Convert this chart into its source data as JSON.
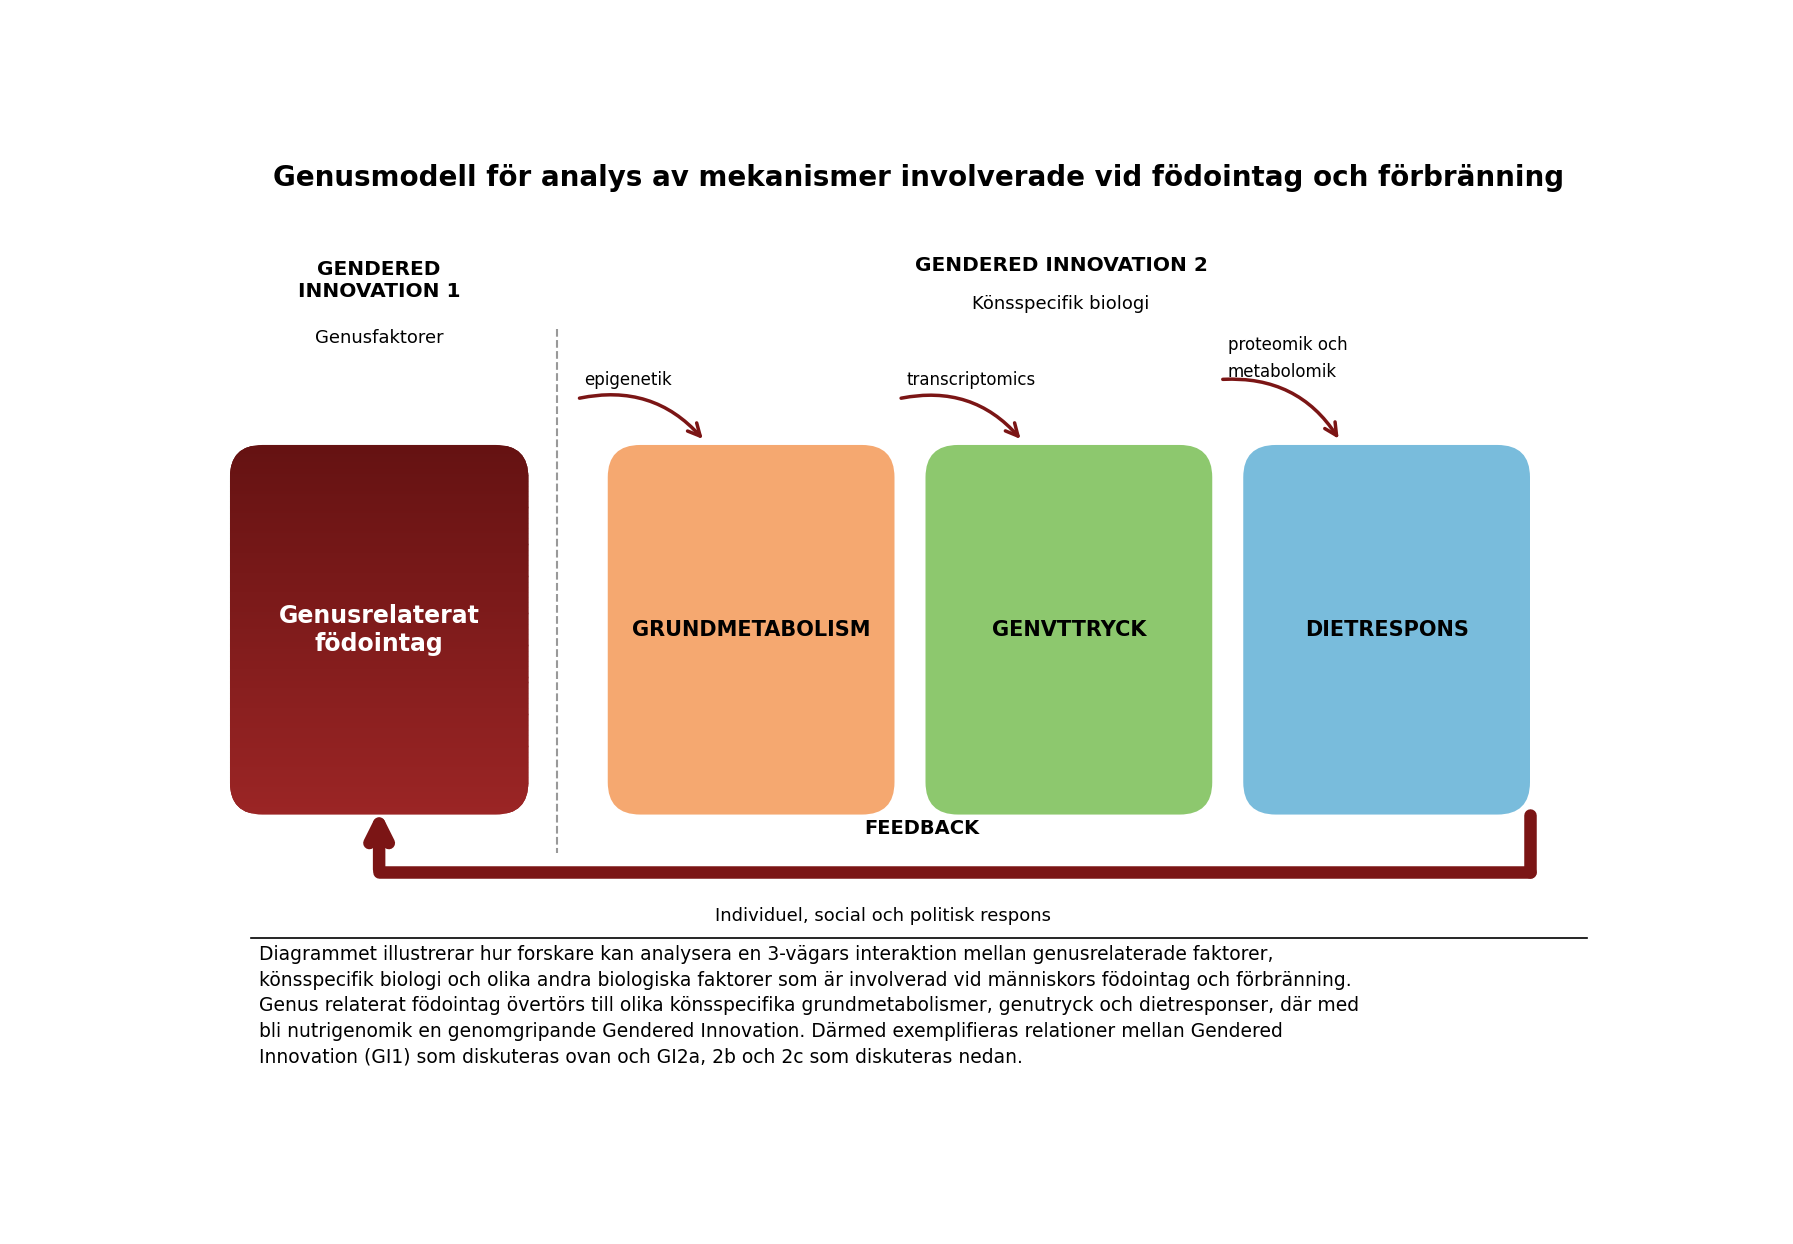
{
  "title": "Genusmodell för analys av mekanismer involverade vid födointag och förbränning",
  "title_fontsize": 20,
  "background_color": "#ffffff",
  "gi1_header": "GENDERED\nINNOVATION 1",
  "gi1_sub": "Genusfaktorer",
  "gi2_header": "GENDERED INNOVATION 2",
  "gi2_sub": "Könsspecifik biologi",
  "box1_label": "Genusrelaterat\nfödointag",
  "box2_label": "GRUNDMETABOLISM",
  "box3_label": "GENVTTRYCK",
  "box4_label": "DIETRESPONS",
  "arrow1_label": "epigenetik",
  "arrow2_label": "transcriptomics",
  "arrow3_label_line1": "proteomik och",
  "arrow3_label_line2": "metabolomik",
  "feedback_label": "FEEDBACK",
  "individuel_label": "Individuel, social och politisk respons",
  "box1_grad_top": "#9B2525",
  "box1_grad_bot": "#651212",
  "box2_color": "#F5A870",
  "box3_color": "#8DC86E",
  "box4_color": "#79BCDC",
  "arrow_color": "#7B1515",
  "feedback_color": "#7B1515",
  "caption_line1": "Diagrammet illustrerar hur forskare kan analysera en 3-vägars interaktion mellan genusrelaterade faktorer,",
  "caption_line2": "könsspecifik biologi och olika andra biologiska faktorer som är involverad vid människors födointag och förbränning.",
  "caption_line3": "Genus relaterat födointag övertörs till olika könsspecifika grundmetabolismer, genutryck och dietresponser, där med",
  "caption_line4": "bli nutrigenomik en genomgripande Gendered Innovation. Därmed exemplifieras relationer mellan Gendered",
  "caption_line5": "Innovation (GI1) som diskuteras ovan och GI2a, 2b och 2c som diskuteras nedan.",
  "caption_fontsize": 13.5
}
